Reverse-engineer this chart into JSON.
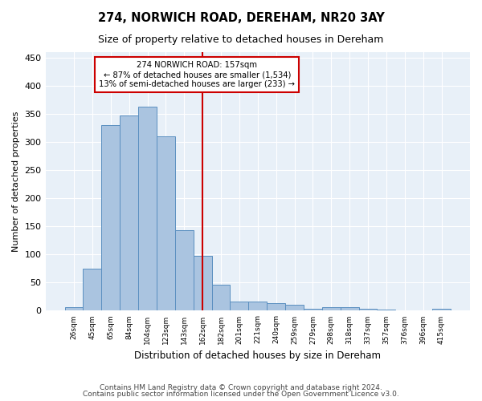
{
  "title1": "274, NORWICH ROAD, DEREHAM, NR20 3AY",
  "title2": "Size of property relative to detached houses in Dereham",
  "xlabel": "Distribution of detached houses by size in Dereham",
  "ylabel": "Number of detached properties",
  "categories": [
    "26sqm",
    "45sqm",
    "65sqm",
    "84sqm",
    "104sqm",
    "123sqm",
    "143sqm",
    "162sqm",
    "182sqm",
    "201sqm",
    "221sqm",
    "240sqm",
    "259sqm",
    "279sqm",
    "298sqm",
    "318sqm",
    "337sqm",
    "357sqm",
    "376sqm",
    "396sqm",
    "415sqm"
  ],
  "values": [
    7,
    75,
    330,
    348,
    363,
    310,
    143,
    98,
    46,
    17,
    16,
    13,
    10,
    4,
    6,
    6,
    4,
    2,
    0,
    0,
    3
  ],
  "bar_color": "#aac4e0",
  "bar_edge_color": "#5a8fc0",
  "vline_x": 7,
  "vline_label": "162sqm",
  "annotation_text1": "274 NORWICH ROAD: 157sqm",
  "annotation_text2": "← 87% of detached houses are smaller (1,534)",
  "annotation_text3": "13% of semi-detached houses are larger (233) →",
  "annotation_box_color": "#ffffff",
  "annotation_box_edge": "#cc0000",
  "vline_color": "#cc0000",
  "background_color": "#e8f0f8",
  "grid_color": "#ffffff",
  "footer1": "Contains HM Land Registry data © Crown copyright and database right 2024.",
  "footer2": "Contains public sector information licensed under the Open Government Licence v3.0.",
  "ylim": [
    0,
    460
  ],
  "yticks": [
    0,
    50,
    100,
    150,
    200,
    250,
    300,
    350,
    400,
    450
  ]
}
